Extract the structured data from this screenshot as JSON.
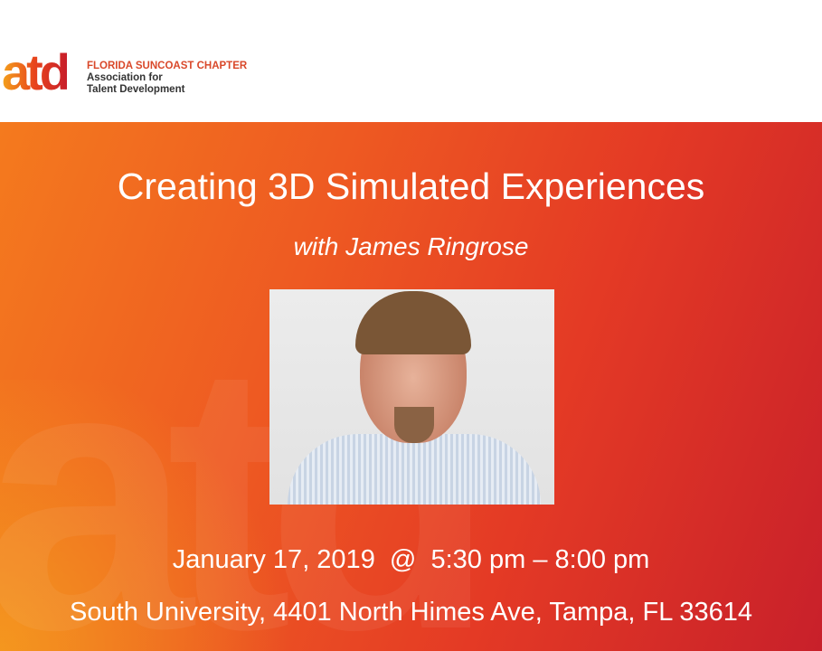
{
  "logo": {
    "mark": "atd",
    "chapter": "FLORIDA SUNCOAST CHAPTER",
    "line1": "Association for",
    "line2": "Talent Development"
  },
  "event": {
    "title": "Creating 3D Simulated Experiences",
    "subtitle": "with James Ringrose",
    "datetime": "January 17, 2019  @  5:30 pm – 8:00 pm",
    "venue": "South University, 4401 North Himes Ave, Tampa, FL 33614"
  },
  "colors": {
    "accent_orange": "#f47a1e",
    "accent_red": "#c8202a"
  }
}
